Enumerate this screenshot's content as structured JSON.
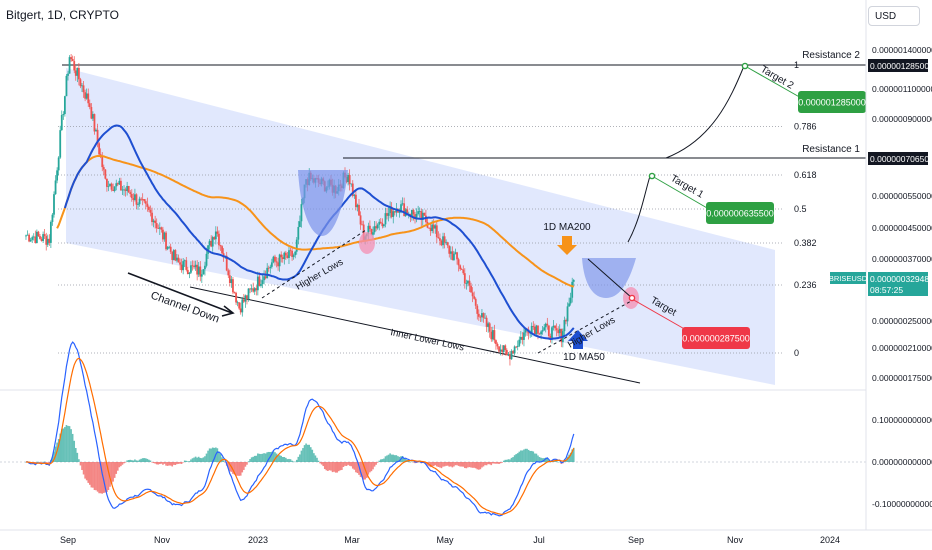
{
  "header": {
    "title": "Bitgert, 1D, CRYPTO",
    "currency": "USD"
  },
  "colors": {
    "candle_up": "#26a69a",
    "candle_down": "#ef5350",
    "ma50": "#1e4fd1",
    "ma200": "#f7931a",
    "channel_fill": "#c9d6fb",
    "pattern_fill": "#7b93ea",
    "macd_line": "#2962ff",
    "signal_line": "#ff6d00",
    "target_green": "#2ea043",
    "target_red": "#ef3848",
    "pink_marker": "#f48fb1"
  },
  "price_axis": {
    "ticks": [
      "0.000001400000",
      "0.000001285000",
      "0.000001100000",
      "0.000000900000",
      "0.000000706500",
      "0.000000550000",
      "0.000000450000",
      "0.000000370000",
      "0.000000329486",
      "0.000000250000",
      "0.000000210000",
      "0.000000175000"
    ],
    "plain_ticks": [
      "0.000001400000",
      "0.000001100000",
      "0.000000900000",
      "0.000000550000",
      "0.000000450000",
      "0.000000370000",
      "0.000000250000",
      "0.000000210000",
      "0.000000175000"
    ],
    "resistance2_box": "0.000001285000",
    "resistance1_box": "0.000000706500",
    "symbol_label": "BRISEUSD",
    "current_price": "0.000000329486",
    "countdown": "08:57:25"
  },
  "macd_axis": {
    "ticks": [
      "0.100000000000",
      "0.000000000000",
      "-0.100000000000"
    ]
  },
  "time_axis": {
    "labels": [
      "Sep",
      "Nov",
      "2023",
      "Mar",
      "May",
      "Jul",
      "Sep",
      "Nov",
      "2024"
    ]
  },
  "fib_levels": [
    {
      "label": "1",
      "value": 1.0
    },
    {
      "label": "0.786",
      "value": 0.786
    },
    {
      "label": "0.618",
      "value": 0.618
    },
    {
      "label": "0.5",
      "value": 0.5
    },
    {
      "label": "0.382",
      "value": 0.382
    },
    {
      "label": "0.236",
      "value": 0.236
    },
    {
      "label": "0",
      "value": 0
    }
  ],
  "annotations": {
    "resistance2": "Resistance 2",
    "resistance1": "Resistance 1",
    "channel_down": "Channel Down",
    "higher_lows_1": "Higher Lows",
    "higher_lows_2": "Higher Lows",
    "inner_lower_lows": "Inner Lower Lows",
    "ma200_label": "1D MA200",
    "ma50_label": "1D MA50",
    "target_1": "Target 1",
    "target_2": "Target 2",
    "target": "Target",
    "target_1_value": "0.000000635500",
    "target_2_value": "0.000001285000",
    "target_value": "0.000000287500"
  },
  "chart_data": {
    "type": "candlestick",
    "symbol": "BRISEUSD",
    "timeframe": "1D",
    "x_range": [
      "2022-08",
      "2024-01"
    ],
    "close_path": [
      {
        "date": "2022-08-05",
        "price": 4.4e-07
      },
      {
        "date": "2022-08-20",
        "price": 4.3e-07
      },
      {
        "date": "2022-08-28",
        "price": 9e-07
      },
      {
        "date": "2022-09-02",
        "price": 1.36e-06
      },
      {
        "date": "2022-09-15",
        "price": 1e-06
      },
      {
        "date": "2022-09-25",
        "price": 6.2e-07
      },
      {
        "date": "2022-10-10",
        "price": 5.8e-07
      },
      {
        "date": "2022-10-25",
        "price": 5e-07
      },
      {
        "date": "2022-11-10",
        "price": 3.7e-07
      },
      {
        "date": "2022-11-25",
        "price": 3.5e-07
      },
      {
        "date": "2022-12-05",
        "price": 4.6e-07
      },
      {
        "date": "2022-12-20",
        "price": 2.8e-07
      },
      {
        "date": "2023-01-10",
        "price": 3.7e-07
      },
      {
        "date": "2023-01-25",
        "price": 3.9e-07
      },
      {
        "date": "2023-02-01",
        "price": 6.3e-07
      },
      {
        "date": "2023-02-20",
        "price": 5.9e-07
      },
      {
        "date": "2023-02-28",
        "price": 6.5e-07
      },
      {
        "date": "2023-03-10",
        "price": 4.4e-07
      },
      {
        "date": "2023-04-01",
        "price": 5.3e-07
      },
      {
        "date": "2023-04-20",
        "price": 4.8e-07
      },
      {
        "date": "2023-05-10",
        "price": 3.7e-07
      },
      {
        "date": "2023-05-25",
        "price": 2.6e-07
      },
      {
        "date": "2023-06-10",
        "price": 2.05e-07
      },
      {
        "date": "2023-06-25",
        "price": 2.5e-07
      },
      {
        "date": "2023-07-15",
        "price": 2.35e-07
      },
      {
        "date": "2023-07-23",
        "price": 3.29486e-07
      }
    ]
  }
}
